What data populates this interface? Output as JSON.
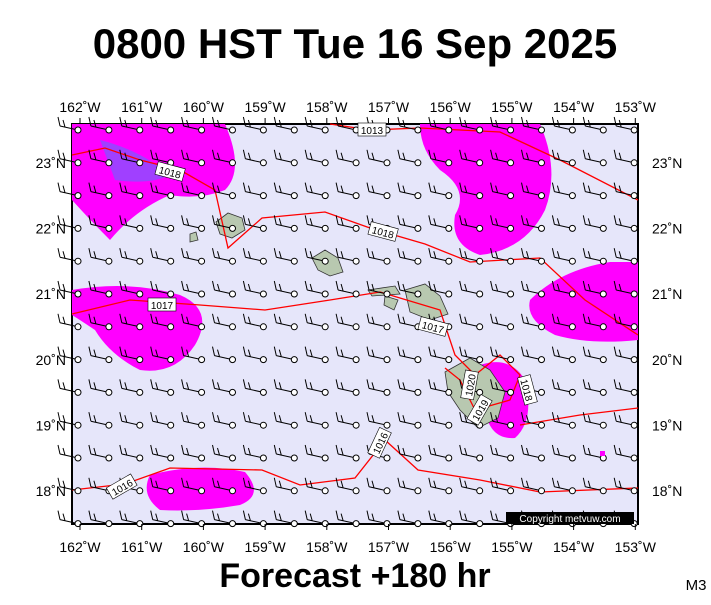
{
  "title": "0800 HST Tue 16 Sep 2025",
  "map": {
    "lon_labels": [
      "162˚W",
      "161˚W",
      "160˚W",
      "159˚W",
      "158˚W",
      "157˚W",
      "156˚W",
      "155˚W",
      "154˚W",
      "153˚W"
    ],
    "lat_labels": [
      "23˚N",
      "22˚N",
      "21˚N",
      "20˚N",
      "19˚N",
      "18˚N"
    ],
    "isobar_labels": [
      "1013",
      "1018",
      "1018",
      "1017",
      "1017",
      "1020",
      "1019",
      "1018",
      "1016",
      "1016"
    ],
    "copyright": "Copyright metvuw.com"
  },
  "footer": {
    "caption": "Forecast +180 hr",
    "code": "M3"
  }
}
